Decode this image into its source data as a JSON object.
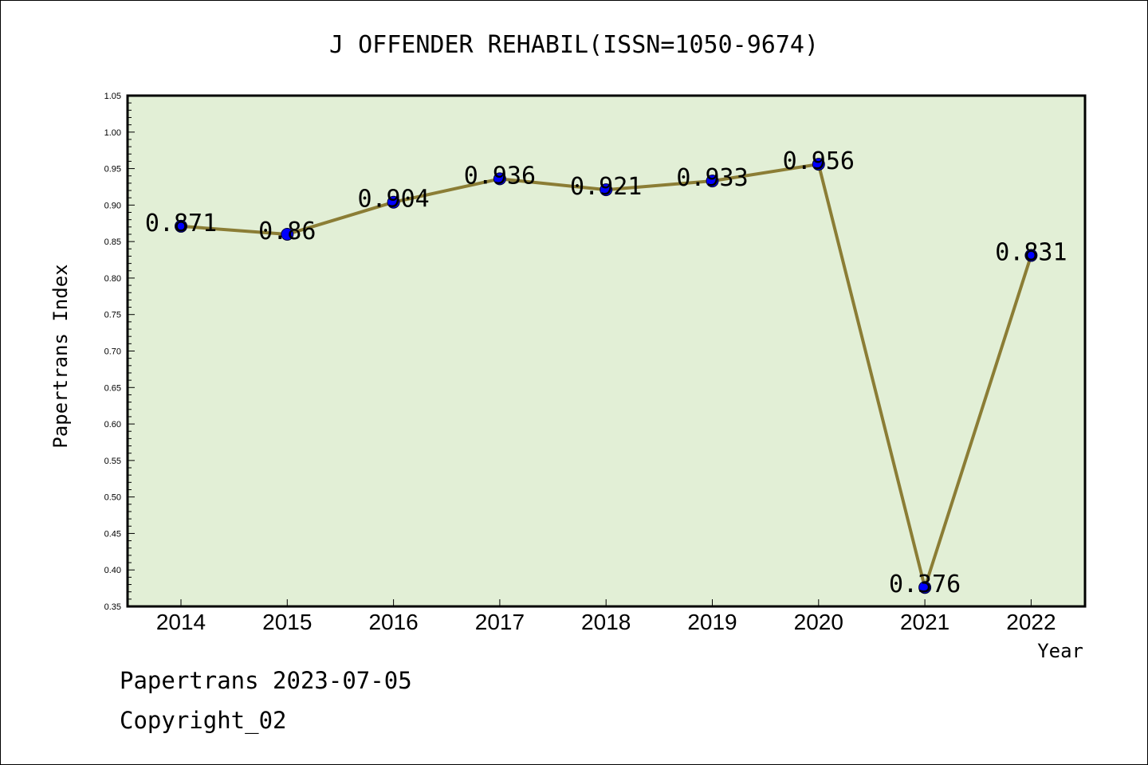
{
  "chart_data": {
    "type": "line",
    "title": "J OFFENDER REHABIL(ISSN=1050-9674)",
    "xlabel": "Year",
    "ylabel": "Papertrans Index",
    "categories": [
      "2014",
      "2015",
      "2016",
      "2017",
      "2018",
      "2019",
      "2020",
      "2021",
      "2022"
    ],
    "values": [
      0.871,
      0.86,
      0.904,
      0.936,
      0.921,
      0.933,
      0.956,
      0.376,
      0.831
    ],
    "data_labels": [
      "0.871",
      "0.86",
      "0.904",
      "0.936",
      "0.921",
      "0.933",
      "0.956",
      "0.376",
      "0.831"
    ],
    "ylim": [
      0.35,
      1.05
    ],
    "yticks": [
      "0.35",
      "0.40",
      "0.45",
      "0.50",
      "0.55",
      "0.60",
      "0.65",
      "0.70",
      "0.75",
      "0.80",
      "0.85",
      "0.90",
      "0.95",
      "1.00",
      "1.05"
    ],
    "grid": false,
    "legend": "none",
    "colors": {
      "plot_background": "#e2efd6",
      "line": "#8b7d35",
      "marker": "#0000ff",
      "axes": "#000000"
    }
  },
  "footer": {
    "line1": "Papertrans 2023-07-05",
    "line2": "Copyright_02"
  }
}
